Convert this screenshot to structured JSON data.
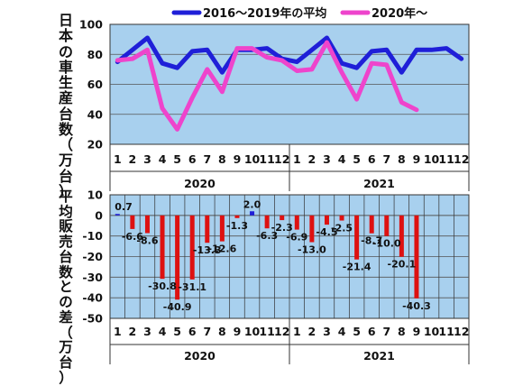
{
  "chart_data": [
    {
      "type": "line",
      "legend": [
        "2016～2019年の平均",
        "2020年～"
      ],
      "legend_position": "top",
      "ylabel": "日本の車生産台数（万台）",
      "ylim": [
        20,
        100
      ],
      "yticks": [
        20,
        40,
        60,
        80,
        100
      ],
      "x": [
        "1",
        "2",
        "3",
        "4",
        "5",
        "6",
        "7",
        "8",
        "9",
        "10",
        "11",
        "12",
        "1",
        "2",
        "3",
        "4",
        "5",
        "6",
        "7",
        "8",
        "9",
        "10",
        "11",
        "12"
      ],
      "year_labels": [
        "2020",
        "2021"
      ],
      "grid": true,
      "series": [
        {
          "name": "2016～2019年の平均",
          "color": "#1f1fd8",
          "values": [
            75,
            83,
            91,
            74,
            71,
            82,
            83,
            68,
            83,
            83,
            84,
            77,
            75,
            83,
            91,
            74,
            71,
            82,
            83,
            68,
            83,
            83,
            84,
            77
          ]
        },
        {
          "name": "2020年～",
          "color": "#ee44cc",
          "values": [
            76,
            77,
            83,
            44,
            30,
            51,
            70,
            55,
            84,
            84,
            78,
            76,
            69,
            70,
            88,
            68,
            50,
            74,
            73,
            48,
            43,
            null,
            null,
            null
          ]
        }
      ]
    },
    {
      "type": "bar",
      "ylabel": "平均販売台数との差（万台）",
      "ylim": [
        -50,
        10
      ],
      "yticks": [
        10,
        0,
        -10,
        -20,
        -30,
        -40,
        -50
      ],
      "x": [
        "1",
        "2",
        "3",
        "4",
        "5",
        "6",
        "7",
        "8",
        "9",
        "10",
        "11",
        "12",
        "1",
        "2",
        "3",
        "4",
        "5",
        "6",
        "7",
        "8",
        "9",
        "10",
        "11",
        "12"
      ],
      "year_labels": [
        "2020",
        "2021"
      ],
      "grid": true,
      "colors": {
        "positive": "#1f1fd8",
        "negative": "#dd1111"
      },
      "values": [
        0.7,
        -6.6,
        -8.6,
        -30.8,
        -40.9,
        -31.1,
        -13.3,
        -12.6,
        -1.3,
        2.0,
        -6.3,
        -2.3,
        -6.9,
        -13.0,
        -4.5,
        -2.5,
        -21.4,
        -8.7,
        -10.0,
        -20.1,
        -40.3,
        null,
        null,
        null
      ],
      "labels": [
        "0.7",
        "-6.6",
        "-8.6",
        "-30.8",
        "-40.9",
        "-31.1",
        "-13.3",
        "-12.6",
        "-1.3",
        "2.0",
        "-6.3",
        "-2.3",
        "-6.9",
        "-13.0",
        "-4.5",
        "-2.5",
        "-21.4",
        "-8.7",
        "-10.0",
        "-20.1",
        "-40.3",
        null,
        null,
        null
      ]
    }
  ]
}
